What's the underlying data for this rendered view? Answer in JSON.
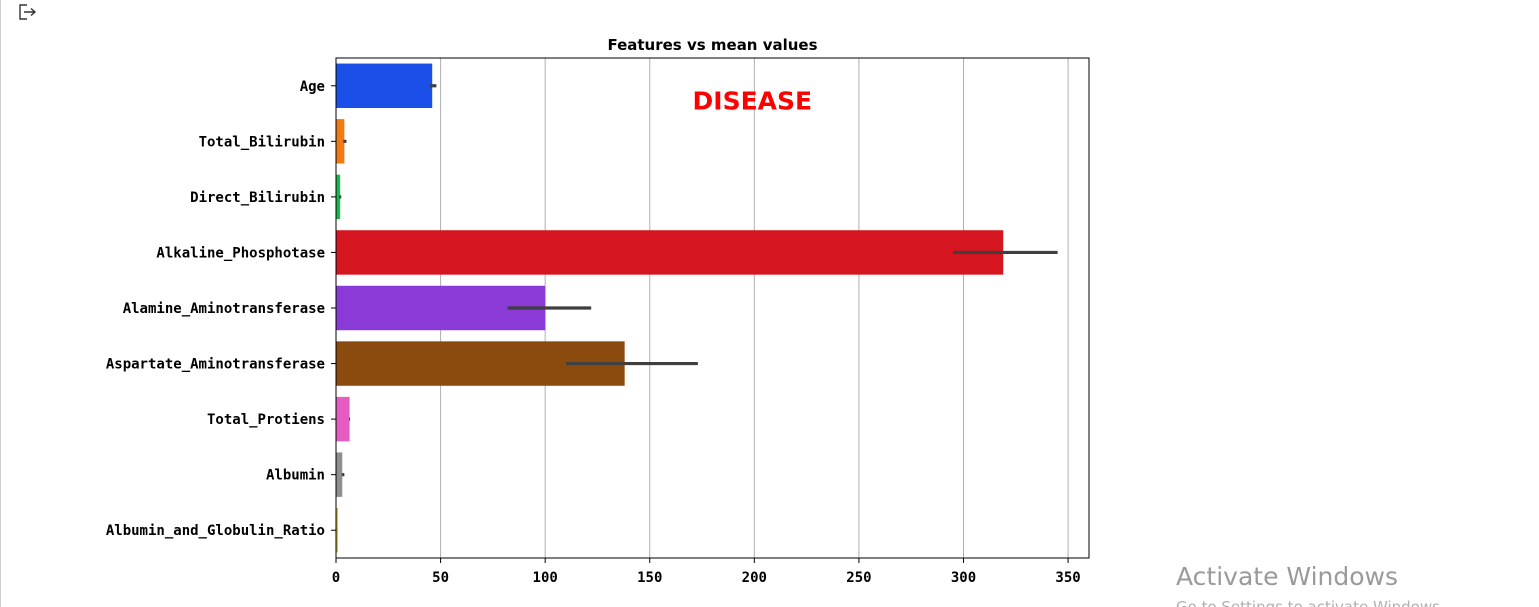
{
  "output_icon": "output-arrow-icon",
  "watermark": {
    "title": "Activate Windows",
    "subtitle": "Go to Settings to activate Windows."
  },
  "chart_data": {
    "type": "bar",
    "orientation": "horizontal",
    "title": "Features vs mean values",
    "xlabel": "",
    "ylabel": "",
    "xlim": [
      0,
      360
    ],
    "xticks": [
      0,
      50,
      100,
      150,
      200,
      250,
      300,
      350
    ],
    "grid": "vertical",
    "annotation": {
      "text": "DISEASE",
      "color": "#ff0000",
      "x": 200,
      "category_index": 0.6
    },
    "categories": [
      "Age",
      "Total_Bilirubin",
      "Direct_Bilirubin",
      "Alkaline_Phosphotase",
      "Alamine_Aminotransferase",
      "Aspartate_Aminotransferase",
      "Total_Protiens",
      "Albumin",
      "Albumin_and_Globulin_Ratio"
    ],
    "values": [
      46,
      4,
      2,
      319,
      100,
      138,
      6.5,
      3,
      0.9
    ],
    "error_low": [
      45,
      3.5,
      1.5,
      295,
      82,
      110,
      6.3,
      2.8,
      0.9
    ],
    "error_high": [
      48,
      5,
      2.5,
      345,
      122,
      173,
      6.7,
      4,
      0.95
    ],
    "colors": [
      "#1a4fe8",
      "#f27a14",
      "#18b84a",
      "#d51620",
      "#8a3ad6",
      "#8b4a0e",
      "#e55cc1",
      "#8f8f8f",
      "#ccbd2e"
    ]
  }
}
